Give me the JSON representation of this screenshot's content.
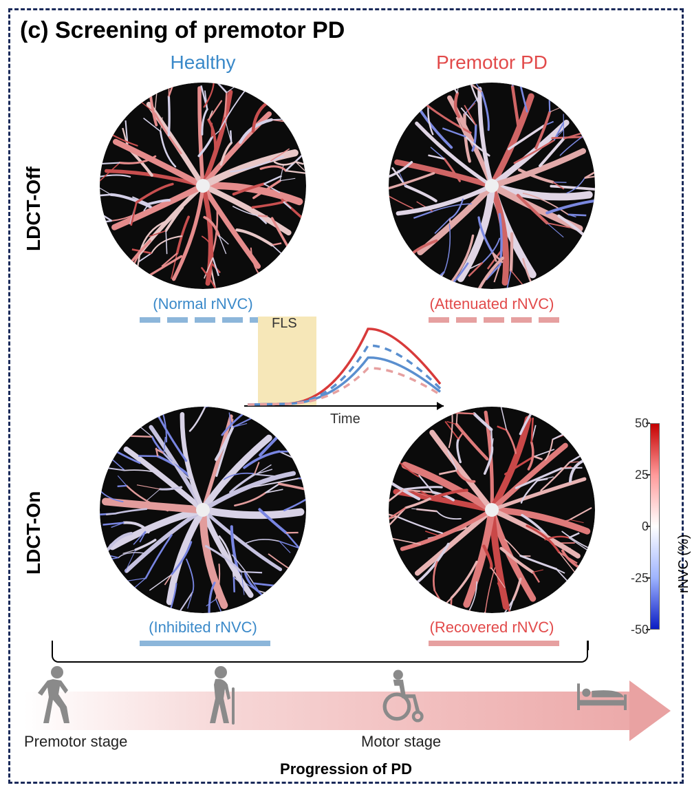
{
  "panel_title": "(c) Screening of premotor PD",
  "columns": {
    "healthy": {
      "label": "Healthy",
      "color": "#3a89c9"
    },
    "premotor": {
      "label": "Premotor PD",
      "color": "#e24a4a"
    }
  },
  "rows": {
    "off": {
      "label": "LDCT-Off"
    },
    "on": {
      "label": "LDCT-On"
    }
  },
  "captions": {
    "top_left": {
      "text": "(Normal rNVC)",
      "color": "#3a89c9"
    },
    "top_right": {
      "text": "(Attenuated rNVC)",
      "color": "#e24a4a"
    },
    "bot_left": {
      "text": "(Inhibited rNVC)",
      "color": "#3a89c9"
    },
    "bot_right": {
      "text": "(Recovered rNVC)",
      "color": "#e24a4a"
    }
  },
  "marks": {
    "healthy_dash_color": "#8cb6da",
    "premotor_dash_color": "#e6a0a0",
    "healthy_solid_color": "#8cb6da",
    "premotor_solid_color": "#e6a0a0"
  },
  "mini_chart": {
    "fls_label": "FLS",
    "x_label": "Time",
    "fls_box_color": "#f6e7b8",
    "curves": {
      "red_solid": {
        "color": "#d83a3a",
        "dash": false,
        "peak": 1.0
      },
      "blue_dash": {
        "color": "#5a8fcf",
        "dash": true,
        "peak": 0.78
      },
      "blue_solid": {
        "color": "#5a8fcf",
        "dash": false,
        "peak": 0.62
      },
      "red_dash": {
        "color": "#e6a0a0",
        "dash": true,
        "peak": 0.48
      }
    }
  },
  "colorbar": {
    "label": "rNVC (%)",
    "ticks": [
      {
        "value": "50",
        "pos": 0.0
      },
      {
        "value": "25",
        "pos": 0.25
      },
      {
        "value": "0",
        "pos": 0.5
      },
      {
        "value": "-25",
        "pos": 0.75
      },
      {
        "value": "-50",
        "pos": 1.0
      }
    ]
  },
  "retina_style": {
    "bg": "#0b0b0b",
    "palette_red": "#e68a8a",
    "palette_red2": "#d15555",
    "palette_white": "#efeaf0",
    "palette_pale": "#d9cfe4",
    "palette_blue": "#6a7de0",
    "palette_blue2": "#3a4fd0"
  },
  "retina_tones": {
    "top_left": {
      "main": "#e58c8c",
      "mid": "#e8c7c7",
      "minor": "#d4d0e8",
      "accent": "#c84f4f"
    },
    "top_right": {
      "main": "#e0d5e5",
      "mid": "#e2a9a9",
      "minor": "#7a88e0",
      "accent": "#d06565"
    },
    "bot_left": {
      "main": "#d8d2e6",
      "mid": "#c6c2e0",
      "minor": "#7885e2",
      "accent": "#e29c9c"
    },
    "bot_right": {
      "main": "#df7a7a",
      "mid": "#e8b3b3",
      "minor": "#d7d0e5",
      "accent": "#c94848"
    }
  },
  "progression": {
    "stage_left": "Premotor stage",
    "stage_right": "Motor stage",
    "caption": "Progression of PD",
    "icon_color": "#8a8a8a"
  }
}
